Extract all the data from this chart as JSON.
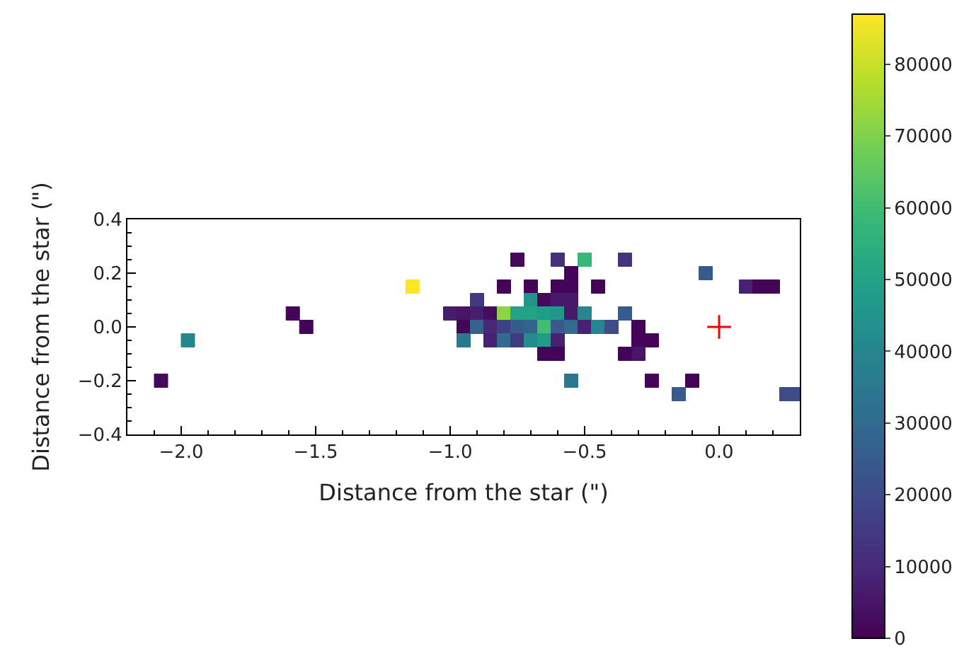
{
  "chart_data": {
    "type": "scatter",
    "xlabel": "Distance from the star (\")",
    "ylabel": "Distance from the star (\")",
    "xlim": [
      -2.2,
      0.3
    ],
    "ylim": [
      -0.4,
      0.4
    ],
    "xticks": [
      {
        "value": -2.0,
        "label": "−2.0"
      },
      {
        "value": -1.5,
        "label": "−1.5"
      },
      {
        "value": -1.0,
        "label": "−1.0"
      },
      {
        "value": -0.5,
        "label": "−0.5"
      },
      {
        "value": 0.0,
        "label": "0.0"
      }
    ],
    "yticks": [
      {
        "value": -0.4,
        "label": "−0.4"
      },
      {
        "value": -0.2,
        "label": "−0.2"
      },
      {
        "value": 0.0,
        "label": "0.0"
      },
      {
        "value": 0.2,
        "label": "0.2"
      },
      {
        "value": 0.4,
        "label": "0.4"
      }
    ],
    "clim": [
      0,
      87000
    ],
    "cticks": [
      0,
      10000,
      20000,
      30000,
      40000,
      50000,
      60000,
      70000,
      80000
    ],
    "series": [
      {
        "marker": "square",
        "x": [
          -2.075,
          -1.975,
          -1.585,
          -1.535,
          -1.14,
          -0.75,
          -0.6,
          -0.5,
          -0.35,
          -0.55,
          -0.05,
          -0.8,
          -0.7,
          -0.6,
          -0.55,
          -0.45,
          0.1,
          0.15,
          0.2,
          -0.9,
          -0.7,
          -0.65,
          -0.6,
          -0.55,
          -1.0,
          -0.95,
          -0.9,
          -0.85,
          -0.8,
          -0.75,
          -0.7,
          -0.65,
          -0.6,
          -0.55,
          -0.5,
          -0.35,
          -0.95,
          -0.9,
          -0.85,
          -0.8,
          -0.75,
          -0.7,
          -0.65,
          -0.6,
          -0.55,
          -0.5,
          -0.45,
          -0.4,
          -0.3,
          -0.95,
          -0.85,
          -0.8,
          -0.75,
          -0.7,
          -0.65,
          -0.6,
          -0.3,
          -0.25,
          -0.65,
          -0.6,
          -0.35,
          -0.3,
          -0.55,
          -0.25,
          -0.1,
          -0.15,
          0.25,
          0.3
        ],
        "values": [
          -0.2,
          -0.05,
          0.05,
          0,
          0.15,
          0.25,
          0.25,
          0.25,
          0.25,
          0.2,
          0.2,
          0.15,
          0.15,
          0.15,
          0.15,
          0.15,
          0.15,
          0.15,
          0.15,
          0.1,
          0.1,
          0.1,
          0.1,
          0.1,
          0.05,
          0.05,
          0.05,
          0.05,
          0.05,
          0.05,
          0.05,
          0.05,
          0.05,
          0.05,
          0.05,
          0.05,
          0,
          0,
          0,
          0,
          0,
          0,
          0,
          0,
          0,
          0,
          0,
          0,
          0,
          -0.05,
          -0.05,
          -0.05,
          -0.05,
          -0.05,
          -0.05,
          -0.05,
          -0.05,
          -0.05,
          -0.1,
          -0.1,
          -0.1,
          -0.1,
          -0.2,
          -0.2,
          -0.2,
          -0.25,
          -0.25,
          -0.25
        ],
        "colors": [
          "#45095b",
          "#25868d",
          "#440558",
          "#440558",
          "#fde725",
          "#45095b",
          "#46307c",
          "#35b779",
          "#45337e",
          "#440558",
          "#365b8c",
          "#440558",
          "#440558",
          "#440558",
          "#440558",
          "#440558",
          "#472172",
          "#440558",
          "#440558",
          "#423a81",
          "#21948b",
          "#45095b",
          "#46196a",
          "#46196a",
          "#471d6e",
          "#461567",
          "#471d6e",
          "#450d5f",
          "#8ed544",
          "#23a286",
          "#23a286",
          "#1f9d89",
          "#21978a",
          "#46196a",
          "#25868d",
          "#365b8c",
          "#440558",
          "#34628d",
          "#48287a",
          "#404185",
          "#365b8c",
          "#32658d",
          "#41bc72",
          "#365b8c",
          "#306b8e",
          "#472172",
          "#25868d",
          "#3d4b89",
          "#440558",
          "#2a788e",
          "#472172",
          "#306b8e",
          "#423a81",
          "#248c8c",
          "#1f9d89",
          "#472172",
          "#440558",
          "#440558",
          "#440558",
          "#440558",
          "#440558",
          "#461567",
          "#2a788e",
          "#440558",
          "#440558",
          "#365b8c",
          "#3d4b89",
          "#3d4b89"
        ],
        "cvalues": [
          2000,
          40000,
          1000,
          1000,
          87000,
          2000,
          12000,
          58000,
          13000,
          1000,
          25000,
          1000,
          1000,
          1000,
          1000,
          1000,
          8000,
          1000,
          1000,
          15000,
          45000,
          2000,
          6000,
          6000,
          7000,
          5000,
          7000,
          3000,
          72000,
          50000,
          50000,
          48000,
          46000,
          6000,
          40000,
          25000,
          1000,
          27000,
          10000,
          17000,
          25000,
          28000,
          60000,
          25000,
          30000,
          8000,
          40000,
          20000,
          1000,
          35000,
          8000,
          30000,
          15000,
          42000,
          48000,
          8000,
          1000,
          1000,
          1000,
          1000,
          1000,
          5000,
          35000,
          1000,
          1000,
          25000,
          20000,
          20000
        ]
      },
      {
        "marker": "cross",
        "color": "#ff0000",
        "x": [
          0.0
        ],
        "values": [
          0.0
        ]
      }
    ]
  }
}
